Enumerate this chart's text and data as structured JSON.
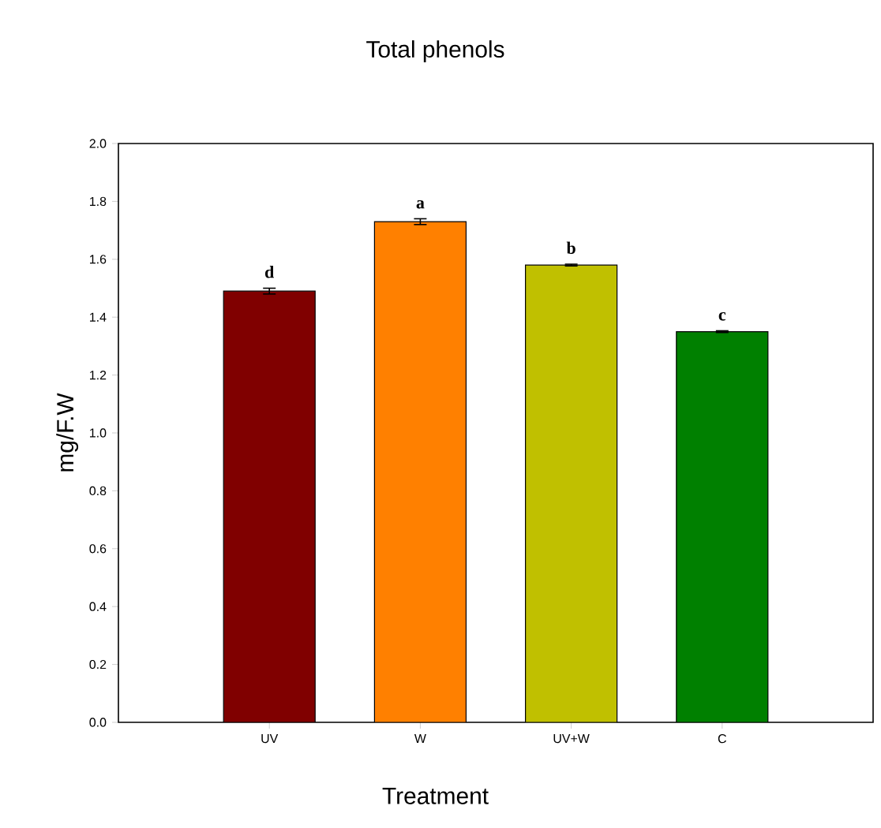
{
  "chart_data": {
    "type": "bar",
    "title": "Total phenols",
    "xlabel": "Treatment",
    "ylabel": "mg/F.W",
    "categories": [
      "UV",
      "W",
      "UV+W",
      "C"
    ],
    "colors": [
      "#800000",
      "#ff8000",
      "#c0c000",
      "#008000"
    ],
    "values": [
      1.49,
      1.73,
      1.58,
      1.35
    ],
    "errors": [
      0.01,
      0.01,
      0.003,
      0.003
    ],
    "ylim": [
      0,
      2.0
    ],
    "yticks": [
      {
        "value": 0,
        "label": "0.0"
      },
      {
        "value": 0.2,
        "label": "0.2"
      },
      {
        "value": 0.4,
        "label": "0.4"
      },
      {
        "value": 0.6,
        "label": "0.6"
      },
      {
        "value": 0.8,
        "label": "0.8"
      },
      {
        "value": 1.0,
        "label": "1.0"
      },
      {
        "value": 1.2,
        "label": "1.2"
      },
      {
        "value": 1.4,
        "label": "1.4"
      },
      {
        "value": 1.6,
        "label": "1.6"
      },
      {
        "value": 1.8,
        "label": "1.8"
      },
      {
        "value": 2.0,
        "label": "2.0"
      }
    ],
    "annotations": [
      {
        "text": "d",
        "x": "UV",
        "y": 1.49
      },
      {
        "text": "a",
        "x": "W",
        "y": 1.73
      },
      {
        "text": "b",
        "x": "UV+W",
        "y": 1.58
      },
      {
        "text": "c",
        "x": "C",
        "y": 1.35
      }
    ],
    "grid": false
  }
}
